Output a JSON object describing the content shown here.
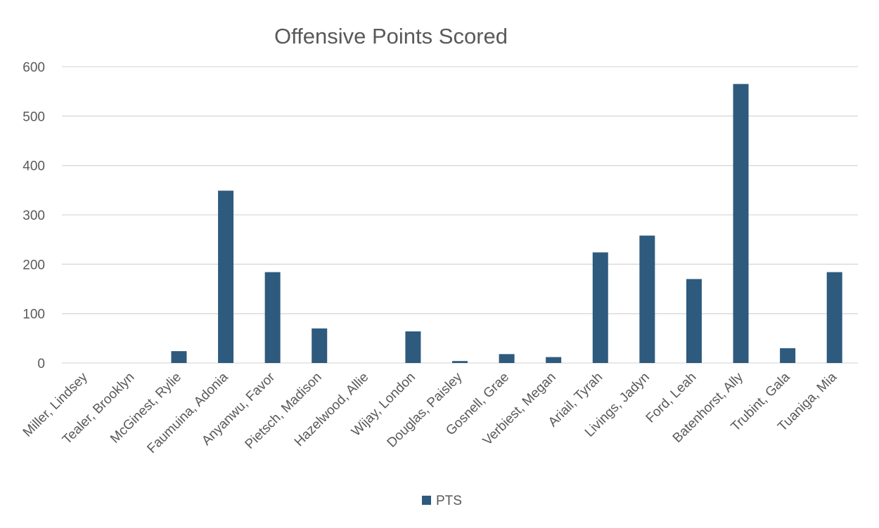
{
  "chart_data": {
    "type": "bar",
    "title": "Offensive Points Scored",
    "xlabel": "",
    "ylabel": "",
    "ylim": [
      0,
      600
    ],
    "yticks": [
      0,
      100,
      200,
      300,
      400,
      500,
      600
    ],
    "grid": true,
    "legend_position": "bottom",
    "categories": [
      "Miller, Lindsey",
      "Tealer, Brooklyn",
      "McGinest, Rylie",
      "Faumuina, Adonia",
      "Anyanwu, Favor",
      "Pietsch, Madison",
      "Hazelwood, Allie",
      "Wijay, London",
      "Douglas, Paisley",
      "Gosnell, Grae",
      "Verbiest, Megan",
      "Ariail, Tyrah",
      "Livings, Jadyn",
      "Ford, Leah",
      "Batenhorst, Ally",
      "Trubint, Gala",
      "Tuaniga, Mia"
    ],
    "series": [
      {
        "name": "PTS",
        "color": "#2e5a7e",
        "values": [
          0,
          0,
          24,
          349,
          184,
          70,
          0,
          64,
          4,
          18,
          12,
          224,
          258,
          170,
          565,
          30,
          184
        ]
      }
    ]
  }
}
